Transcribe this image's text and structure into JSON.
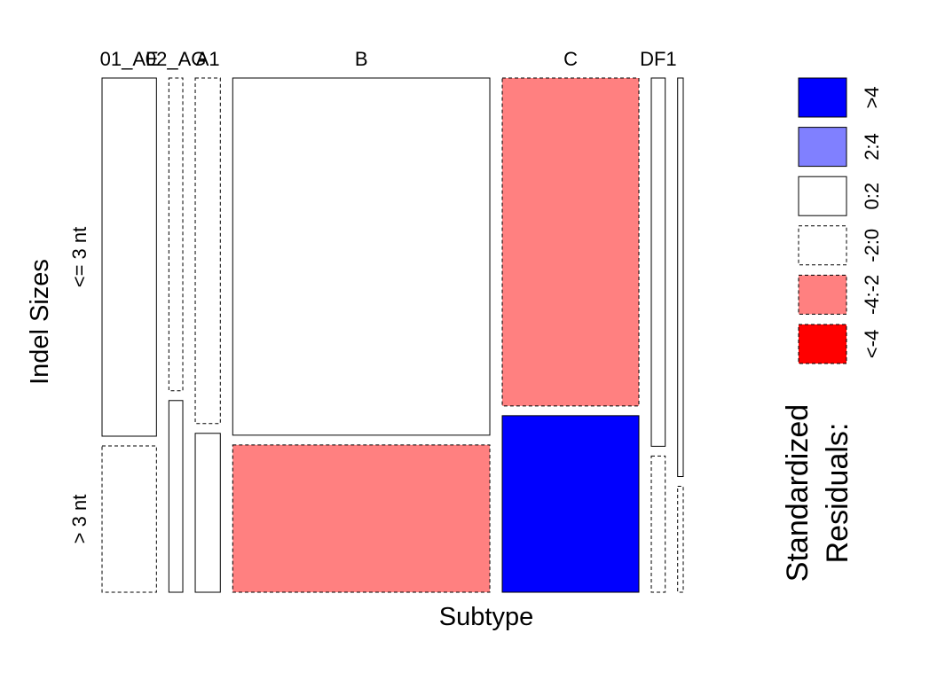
{
  "chart_data": {
    "type": "mosaic",
    "x_variable": "Subtype",
    "y_variable": "Indel Sizes",
    "categories": [
      "01_AE",
      "02_AG",
      "A1",
      "B",
      "C",
      "DF1",
      ""
    ],
    "rows": [
      "<= 3 nt",
      "> 3 nt"
    ],
    "column_widths": [
      0.1035,
      0.0265,
      0.0477,
      0.489,
      0.2599,
      0.0265,
      0.0106
    ],
    "cells": [
      {
        "col": 0,
        "row": 0,
        "fraction": 0.71,
        "residual_class": "0:2"
      },
      {
        "col": 0,
        "row": 1,
        "fraction": 0.29,
        "residual_class": "-2:0"
      },
      {
        "col": 1,
        "row": 0,
        "fraction": 0.62,
        "residual_class": "-2:0"
      },
      {
        "col": 1,
        "row": 1,
        "fraction": 0.38,
        "residual_class": "0:2"
      },
      {
        "col": 2,
        "row": 0,
        "fraction": 0.685,
        "residual_class": "-2:0"
      },
      {
        "col": 2,
        "row": 1,
        "fraction": 0.315,
        "residual_class": "0:2"
      },
      {
        "col": 3,
        "row": 0,
        "fraction": 0.708,
        "residual_class": "0:2"
      },
      {
        "col": 3,
        "row": 1,
        "fraction": 0.292,
        "residual_class": "-4:-2"
      },
      {
        "col": 4,
        "row": 0,
        "fraction": 0.65,
        "residual_class": "-4:-2"
      },
      {
        "col": 4,
        "row": 1,
        "fraction": 0.35,
        "residual_class": ">4"
      },
      {
        "col": 5,
        "row": 0,
        "fraction": 0.73,
        "residual_class": "0:2"
      },
      {
        "col": 5,
        "row": 1,
        "fraction": 0.27,
        "residual_class": "-2:0"
      },
      {
        "col": 6,
        "row": 0,
        "fraction": 0.79,
        "residual_class": "0:2"
      },
      {
        "col": 6,
        "row": 1,
        "fraction": 0.21,
        "residual_class": "-2:0"
      }
    ],
    "legend": {
      "title": "Standardized Residuals:",
      "title_lines": [
        "Standardized",
        "Residuals:"
      ],
      "placement": "right",
      "items": [
        {
          "label": ">4",
          "color": "#0000FF",
          "dashed": false
        },
        {
          "label": "2:4",
          "color": "#8080FF",
          "dashed": false
        },
        {
          "label": "0:2",
          "color": "#FFFFFF",
          "dashed": false
        },
        {
          "label": "-2:0",
          "color": "#FFFFFF",
          "dashed": true
        },
        {
          "label": "-4:-2",
          "color": "#FF8080",
          "dashed": true
        },
        {
          "label": "<-4",
          "color": "#FF0000",
          "dashed": true
        }
      ]
    },
    "xlabel": "Subtype",
    "ylabel": "Indel Sizes"
  }
}
